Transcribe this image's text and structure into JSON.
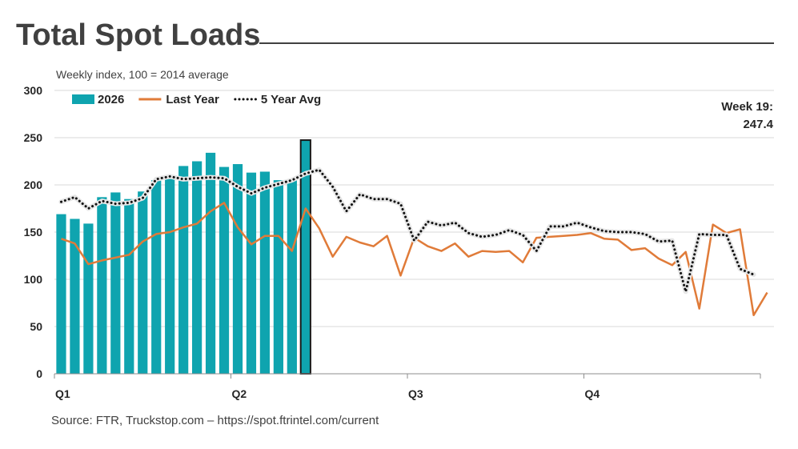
{
  "chart_data": {
    "type": "bar",
    "title": "Total Spot Loads",
    "subtitle": "Weekly index, 100 = 2014 average",
    "source": "Source: FTR, Truckstop.com – https://spot.ftrintel.com/current",
    "ylim": [
      0,
      300
    ],
    "yticks": [
      0,
      50,
      100,
      150,
      200,
      250,
      300
    ],
    "weeks_total": 53,
    "quarters": [
      {
        "label": "Q1",
        "week": 1
      },
      {
        "label": "Q2",
        "week": 14
      },
      {
        "label": "Q3",
        "week": 27
      },
      {
        "label": "Q4",
        "week": 40
      }
    ],
    "legend_placement": "top-left",
    "grid": true,
    "annotation": {
      "line1": "Week 19:",
      "line2": "247.4"
    },
    "highlight_week": 19,
    "series": [
      {
        "name": "2026",
        "kind": "bar",
        "color": "#0FA4AF",
        "values": [
          169,
          164,
          159,
          187,
          192,
          185,
          193,
          205,
          208,
          220,
          225,
          234,
          219,
          222,
          213,
          214,
          205,
          205,
          247.4
        ]
      },
      {
        "name": "Last Year",
        "kind": "line",
        "color": "#E07B39",
        "values": [
          143,
          138,
          116,
          120,
          123,
          126,
          140,
          148,
          150,
          155,
          159,
          172,
          181,
          155,
          137,
          146,
          146,
          130,
          175,
          154,
          124,
          145,
          139,
          135,
          146,
          104,
          144,
          135,
          130,
          138,
          124,
          130,
          129,
          130,
          118,
          144,
          145,
          146,
          147,
          149,
          143,
          142,
          131,
          133,
          122,
          115,
          129,
          69,
          158,
          149,
          153,
          62,
          86
        ]
      },
      {
        "name": "5 Year Avg",
        "kind": "line",
        "color": "#111111",
        "dash": "dotted",
        "values": [
          182,
          187,
          175,
          183,
          180,
          181,
          186,
          206,
          209,
          206,
          207,
          208,
          207,
          198,
          191,
          197,
          201,
          205,
          212,
          216,
          198,
          172,
          190,
          185,
          185,
          180,
          141,
          161,
          157,
          160,
          149,
          145,
          147,
          152,
          147,
          130,
          156,
          156,
          160,
          155,
          151,
          150,
          150,
          148,
          140,
          141,
          87,
          148,
          147,
          147,
          111,
          105
        ]
      }
    ]
  }
}
